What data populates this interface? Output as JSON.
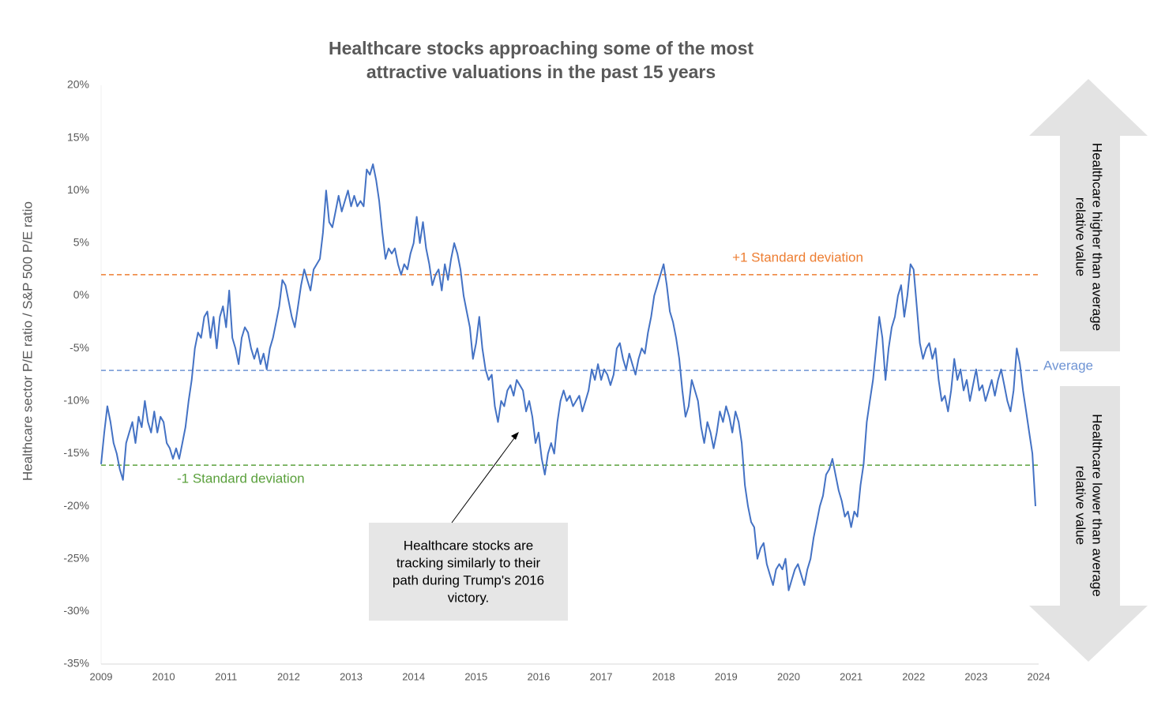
{
  "chart_data": {
    "type": "line",
    "title": [
      "Healthcare stocks approaching some of the most",
      "attractive valuations in the past 15 years"
    ],
    "y_label": "Healthcare sector P/E ratio / S&P 500 P/E ratio",
    "color": "#4472c4",
    "xlim": [
      2009,
      2024
    ],
    "xticks": [
      2009,
      2010,
      2011,
      2012,
      2013,
      2014,
      2015,
      2016,
      2017,
      2018,
      2019,
      2020,
      2021,
      2022,
      2023,
      2024
    ],
    "ylim": [
      -35,
      20
    ],
    "yticks": [
      {
        "value": 20,
        "label": "20%"
      },
      {
        "value": 15,
        "label": "15%"
      },
      {
        "value": 10,
        "label": "10%"
      },
      {
        "value": 5,
        "label": "5%"
      },
      {
        "value": 0,
        "label": "0%"
      },
      {
        "value": -5,
        "label": "-5%"
      },
      {
        "value": -10,
        "label": "-10%"
      },
      {
        "value": -15,
        "label": "-15%"
      },
      {
        "value": -20,
        "label": "-20%"
      },
      {
        "value": -25,
        "label": "-25%"
      },
      {
        "value": -30,
        "label": "-30%"
      },
      {
        "value": -35,
        "label": "-35%"
      }
    ],
    "reference_lines": [
      {
        "label": "+1 Standard deviation",
        "value": 2,
        "color": "#ed7d31"
      },
      {
        "label": "Average",
        "value": -7.1,
        "color": "#6f94d4"
      },
      {
        "label": "-1 Standard deviation",
        "value": -16.1,
        "color": "#5aa03c"
      }
    ],
    "annotation": [
      "Healthcare stocks are",
      "tracking similarly to their",
      "path during Trump's 2016",
      "victory."
    ],
    "side_labels": [
      [
        "Healthcare higher than average",
        "relative value"
      ],
      [
        "Healthcare lower than average",
        "relative value"
      ]
    ],
    "x": [
      2009.0,
      2009.05,
      2009.1,
      2009.15,
      2009.2,
      2009.25,
      2009.3,
      2009.35,
      2009.4,
      2009.45,
      2009.5,
      2009.55,
      2009.6,
      2009.65,
      2009.7,
      2009.75,
      2009.8,
      2009.85,
      2009.9,
      2009.95,
      2010.0,
      2010.05,
      2010.1,
      2010.15,
      2010.2,
      2010.25,
      2010.3,
      2010.35,
      2010.4,
      2010.45,
      2010.5,
      2010.55,
      2010.6,
      2010.65,
      2010.7,
      2010.75,
      2010.8,
      2010.85,
      2010.9,
      2010.95,
      2011.0,
      2011.05,
      2011.1,
      2011.15,
      2011.2,
      2011.25,
      2011.3,
      2011.35,
      2011.4,
      2011.45,
      2011.5,
      2011.55,
      2011.6,
      2011.65,
      2011.7,
      2011.75,
      2011.8,
      2011.85,
      2011.9,
      2011.95,
      2012.0,
      2012.05,
      2012.1,
      2012.15,
      2012.2,
      2012.25,
      2012.3,
      2012.35,
      2012.4,
      2012.45,
      2012.5,
      2012.55,
      2012.6,
      2012.65,
      2012.7,
      2012.75,
      2012.8,
      2012.85,
      2012.9,
      2012.95,
      2013.0,
      2013.05,
      2013.1,
      2013.15,
      2013.2,
      2013.25,
      2013.3,
      2013.35,
      2013.4,
      2013.45,
      2013.5,
      2013.55,
      2013.6,
      2013.65,
      2013.7,
      2013.75,
      2013.8,
      2013.85,
      2013.9,
      2013.95,
      2014.0,
      2014.05,
      2014.1,
      2014.15,
      2014.2,
      2014.25,
      2014.3,
      2014.35,
      2014.4,
      2014.45,
      2014.5,
      2014.55,
      2014.6,
      2014.65,
      2014.7,
      2014.75,
      2014.8,
      2014.85,
      2014.9,
      2014.95,
      2015.0,
      2015.05,
      2015.1,
      2015.15,
      2015.2,
      2015.25,
      2015.3,
      2015.35,
      2015.4,
      2015.45,
      2015.5,
      2015.55,
      2015.6,
      2015.65,
      2015.7,
      2015.75,
      2015.8,
      2015.85,
      2015.9,
      2015.95,
      2016.0,
      2016.05,
      2016.1,
      2016.15,
      2016.2,
      2016.25,
      2016.3,
      2016.35,
      2016.4,
      2016.45,
      2016.5,
      2016.55,
      2016.6,
      2016.65,
      2016.7,
      2016.75,
      2016.8,
      2016.85,
      2016.9,
      2016.95,
      2017.0,
      2017.05,
      2017.1,
      2017.15,
      2017.2,
      2017.25,
      2017.3,
      2017.35,
      2017.4,
      2017.45,
      2017.5,
      2017.55,
      2017.6,
      2017.65,
      2017.7,
      2017.75,
      2017.8,
      2017.85,
      2017.9,
      2017.95,
      2018.0,
      2018.05,
      2018.1,
      2018.15,
      2018.2,
      2018.25,
      2018.3,
      2018.35,
      2018.4,
      2018.45,
      2018.5,
      2018.55,
      2018.6,
      2018.65,
      2018.7,
      2018.75,
      2018.8,
      2018.85,
      2018.9,
      2018.95,
      2019.0,
      2019.05,
      2019.1,
      2019.15,
      2019.2,
      2019.25,
      2019.3,
      2019.35,
      2019.4,
      2019.45,
      2019.5,
      2019.55,
      2019.6,
      2019.65,
      2019.7,
      2019.75,
      2019.8,
      2019.85,
      2019.9,
      2019.95,
      2020.0,
      2020.05,
      2020.1,
      2020.15,
      2020.2,
      2020.25,
      2020.3,
      2020.35,
      2020.4,
      2020.45,
      2020.5,
      2020.55,
      2020.6,
      2020.65,
      2020.7,
      2020.75,
      2020.8,
      2020.85,
      2020.9,
      2020.95,
      2021.0,
      2021.05,
      2021.1,
      2021.15,
      2021.2,
      2021.25,
      2021.3,
      2021.35,
      2021.4,
      2021.45,
      2021.5,
      2021.55,
      2021.6,
      2021.65,
      2021.7,
      2021.75,
      2021.8,
      2021.85,
      2021.9,
      2021.95,
      2022.0,
      2022.05,
      2022.1,
      2022.15,
      2022.2,
      2022.25,
      2022.3,
      2022.35,
      2022.4,
      2022.45,
      2022.5,
      2022.55,
      2022.6,
      2022.65,
      2022.7,
      2022.75,
      2022.8,
      2022.85,
      2022.9,
      2022.95,
      2023.0,
      2023.05,
      2023.1,
      2023.15,
      2023.2,
      2023.25,
      2023.3,
      2023.35,
      2023.4,
      2023.45,
      2023.5,
      2023.55,
      2023.6,
      2023.65,
      2023.7,
      2023.75,
      2023.8,
      2023.85,
      2023.9,
      2023.95
    ],
    "values": [
      -16,
      -13,
      -10.5,
      -12,
      -14,
      -15,
      -16.5,
      -17.5,
      -14,
      -13,
      -12,
      -14,
      -11.5,
      -12.5,
      -10,
      -12,
      -13,
      -11,
      -13,
      -11.5,
      -12,
      -14,
      -14.5,
      -15.5,
      -14.5,
      -15.5,
      -14,
      -12.5,
      -10,
      -8,
      -5,
      -3.5,
      -4,
      -2,
      -1.5,
      -4,
      -2,
      -5,
      -2,
      -1,
      -3,
      0.5,
      -4,
      -5,
      -6.5,
      -4,
      -3,
      -3.5,
      -5,
      -6,
      -5,
      -6.5,
      -5.5,
      -7,
      -5,
      -4,
      -2.5,
      -1,
      1.5,
      1,
      -0.5,
      -2,
      -3,
      -1,
      1,
      2.5,
      1.5,
      0.5,
      2.5,
      3,
      3.5,
      6,
      10,
      7,
      6.5,
      8,
      9.5,
      8,
      9,
      10,
      8.5,
      9.5,
      8.5,
      9,
      8.5,
      12,
      11.5,
      12.5,
      11,
      9,
      6,
      3.5,
      4.5,
      4,
      4.5,
      3,
      2,
      3,
      2.5,
      4,
      5,
      7.5,
      5,
      7,
      4.5,
      3,
      1,
      2,
      2.5,
      0.5,
      3,
      1.5,
      3.5,
      5,
      4,
      2.5,
      0,
      -1.5,
      -3,
      -6,
      -4.5,
      -2,
      -5,
      -7,
      -8,
      -7.5,
      -10.5,
      -12,
      -10,
      -10.5,
      -9,
      -8.5,
      -9.5,
      -8,
      -8.5,
      -9,
      -11,
      -10,
      -11.5,
      -14,
      -13,
      -15.5,
      -17,
      -15,
      -14,
      -15,
      -12,
      -10,
      -9,
      -10,
      -9.5,
      -10.5,
      -10,
      -9.5,
      -11,
      -10,
      -9,
      -7,
      -8,
      -6.5,
      -8,
      -7,
      -7.5,
      -8.5,
      -7.5,
      -5,
      -4.5,
      -6,
      -7,
      -5.5,
      -6.5,
      -7.5,
      -6,
      -5,
      -5.5,
      -3.5,
      -2,
      0,
      1,
      2,
      3,
      1,
      -1.5,
      -2.5,
      -4,
      -6,
      -9,
      -11.5,
      -10.5,
      -8,
      -9,
      -10,
      -12.5,
      -14,
      -12,
      -13,
      -14.5,
      -13,
      -11,
      -12,
      -10.5,
      -11.5,
      -13,
      -11,
      -12,
      -14,
      -18,
      -20,
      -21.5,
      -22,
      -25,
      -24,
      -23.5,
      -25.5,
      -26.5,
      -27.5,
      -26,
      -25.5,
      -26,
      -25,
      -28,
      -27,
      -26,
      -25.5,
      -26.5,
      -27.5,
      -26,
      -25,
      -23,
      -21.5,
      -20,
      -19,
      -17,
      -16.5,
      -15.5,
      -17,
      -18.5,
      -19.5,
      -21,
      -20.5,
      -22,
      -20.5,
      -21,
      -18,
      -16,
      -12,
      -10,
      -8,
      -5,
      -2,
      -4,
      -8,
      -5,
      -3,
      -2,
      0,
      1,
      -2,
      0,
      3,
      2.5,
      -1,
      -4.5,
      -6,
      -5,
      -4.5,
      -6,
      -5,
      -8,
      -10,
      -9.5,
      -11,
      -9,
      -6,
      -8,
      -7,
      -9,
      -8,
      -10,
      -8.5,
      -7,
      -9,
      -8.5,
      -10,
      -9,
      -8,
      -9.5,
      -8,
      -7,
      -8.5,
      -10,
      -11,
      -9,
      -5,
      -6.5,
      -9,
      -11,
      -13,
      -15,
      -20
    ]
  }
}
